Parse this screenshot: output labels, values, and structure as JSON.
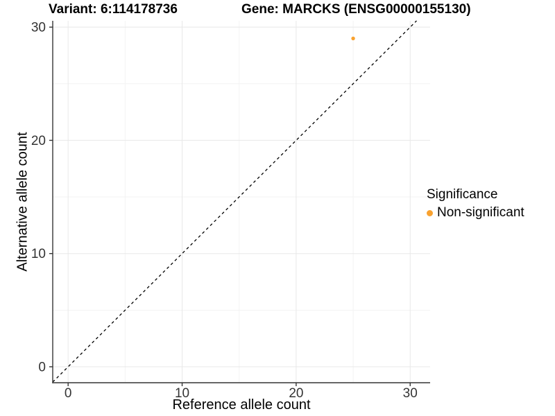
{
  "colors": {
    "background": "#FFFFFF",
    "grid_major": "#E8E8E8",
    "grid_minor": "#F3F3F3",
    "axis": "#333333",
    "tick_text": "#333333",
    "title_text": "#000000",
    "point": "#F9A230"
  },
  "chart_data": {
    "type": "scatter",
    "titles": {
      "variant": "Variant: 6:114178736",
      "gene": "Gene: MARCKS (ENSG00000155130)"
    },
    "xlabel": "Reference allele count",
    "ylabel": "Alternative allele count",
    "x": {
      "ticks": [
        0,
        10,
        20,
        30
      ],
      "minor_ticks": [
        5,
        15,
        25
      ],
      "range": [
        -1.35,
        31.75
      ]
    },
    "y": {
      "ticks": [
        0,
        10,
        20,
        30
      ],
      "minor_ticks": [
        5,
        15,
        25
      ],
      "range": [
        -1.41,
        30.56
      ]
    },
    "grid": "major and minor gridlines, white panel",
    "reference_line": {
      "kind": "identity y=x",
      "style": "dashed",
      "color": "#000000"
    },
    "series": [
      {
        "name": "Non-significant",
        "color": "#F9A230",
        "points": [
          {
            "x": 25,
            "y": 29
          }
        ]
      }
    ],
    "legend": {
      "title": "Significance",
      "position": "right",
      "items": [
        {
          "label": "Non-significant",
          "color": "#F9A230"
        }
      ]
    }
  }
}
